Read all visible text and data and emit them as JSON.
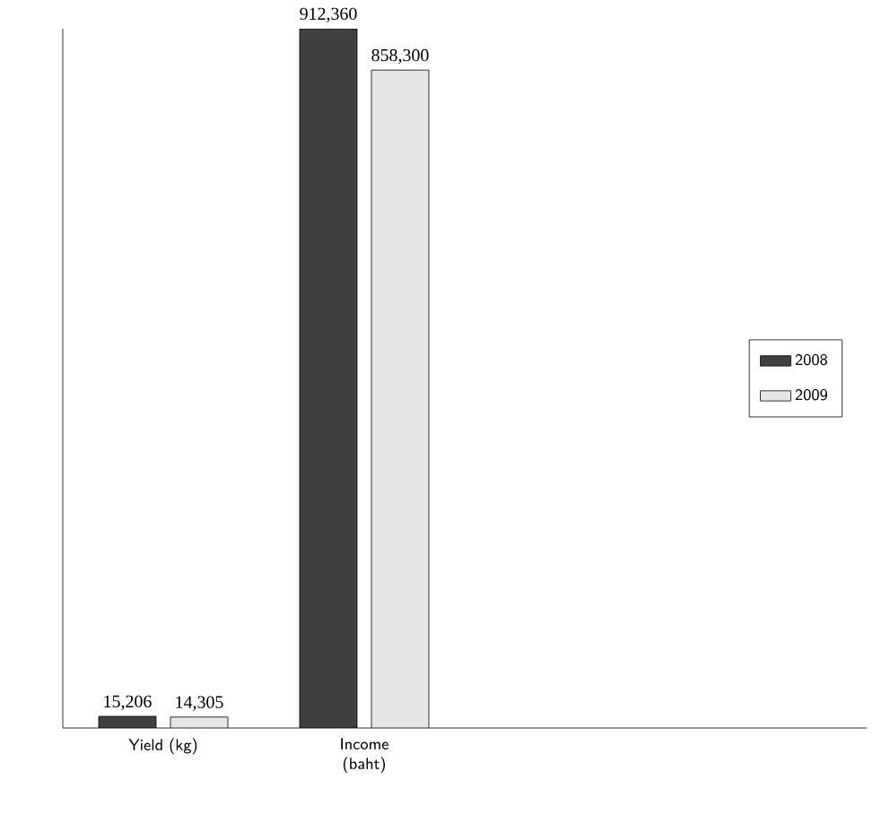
{
  "chart_data": {
    "type": "bar",
    "categories": [
      "Yield (kg)",
      "Income (baht)",
      null,
      null
    ],
    "series": [
      {
        "name": "2008",
        "color": "#404040",
        "values": [
          15206,
          912360,
          null,
          null
        ],
        "value_labels": [
          "15,206",
          "912,360",
          null,
          null
        ]
      },
      {
        "name": "2009",
        "color": "#e6e6e6",
        "values": [
          14305,
          858300,
          null,
          null
        ],
        "value_labels": [
          "14,305",
          "858,300",
          null,
          null
        ]
      }
    ],
    "tick_labels": "x",
    "legend": "right"
  }
}
